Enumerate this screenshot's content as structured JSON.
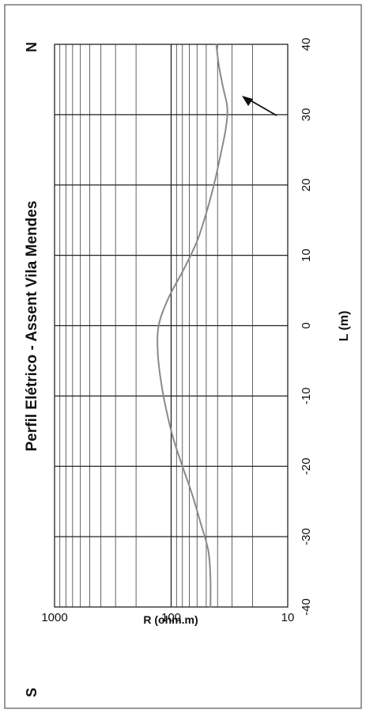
{
  "chart_data": {
    "type": "line",
    "title": "Perfil Elétrico - Assent Vila Mendes",
    "xlabel": "L (m)",
    "ylabel": "R (ohm.m)",
    "yscale": "log",
    "xlim": [
      -40,
      40
    ],
    "ylim": [
      10,
      1000
    ],
    "x_ticks": [
      "-40",
      "-30",
      "-20",
      "-10",
      "0",
      "10",
      "20",
      "30",
      "40"
    ],
    "y_ticks": [
      "10",
      "100",
      "1000"
    ],
    "grid": true,
    "corner_labels": {
      "left": "S",
      "right": "N"
    },
    "annotation": "arrow pointing to minimum near L = 30 m",
    "series": [
      {
        "x": [
          -40,
          -36,
          -32,
          -28,
          -24,
          -20,
          -16,
          -12,
          -8,
          -4,
          0,
          4,
          8,
          12,
          16,
          20,
          24,
          28,
          31,
          34,
          37,
          40
        ],
        "values": [
          46,
          46,
          48,
          56,
          66,
          80,
          96,
          110,
          122,
          130,
          128,
          105,
          78,
          60,
          50,
          43,
          38,
          34,
          33,
          36,
          39,
          41
        ]
      }
    ],
    "colors": {
      "line": "#8a8a8a",
      "grid": "#222222",
      "border": "#555555"
    }
  }
}
